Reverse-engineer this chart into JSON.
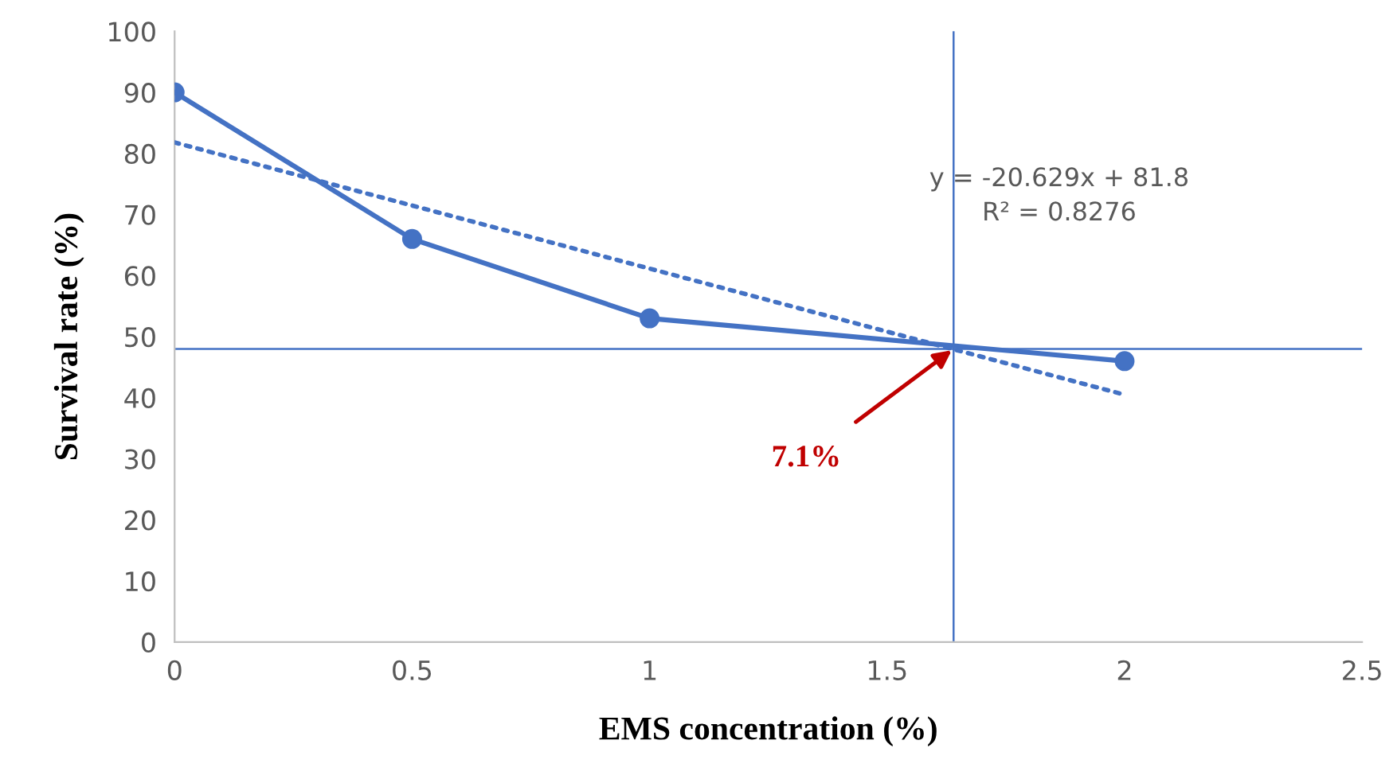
{
  "chart_data": {
    "type": "line",
    "xlabel": "EMS concentration (%)",
    "ylabel": "Survival rate (%)",
    "x": [
      0,
      0.5,
      1,
      2
    ],
    "series": [
      {
        "color": "#4472c4",
        "values": [
          90,
          66,
          53,
          46
        ],
        "marker": "circle",
        "line_style": "solid"
      },
      {
        "type": "line",
        "color": "#4472c4",
        "x": [
          0,
          2
        ],
        "values": [
          81.8,
          40.5
        ],
        "marker": "none",
        "line_style": "dotted"
      }
    ],
    "xlim": [
      0,
      2.5
    ],
    "xticks": [
      0,
      0.5,
      1,
      1.5,
      2,
      2.5
    ],
    "ylim": [
      0,
      100
    ],
    "yticks": [
      0,
      10,
      20,
      30,
      40,
      50,
      60,
      70,
      80,
      90,
      100
    ],
    "grid": false,
    "legend": false,
    "ref_lines": [
      {
        "axis": "y",
        "value": 48,
        "color": "#4472c4"
      },
      {
        "axis": "x",
        "value": 1.64,
        "color": "#4472c4"
      }
    ],
    "annotations": [
      "y = -20.629x + 81.8\nR² = 0.8276",
      {
        "text": "7.1%",
        "x": 1.64,
        "y": 48
      }
    ]
  }
}
